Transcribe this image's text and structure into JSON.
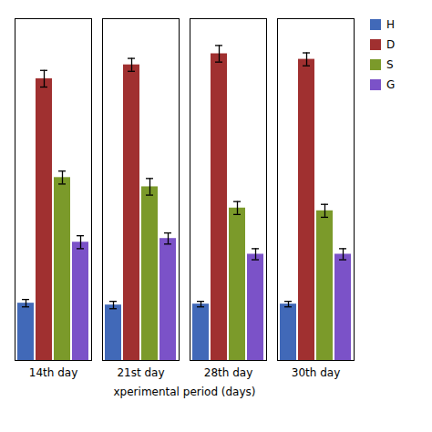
{
  "chart_data": {
    "type": "bar",
    "categories": [
      "14th day",
      "21st day",
      "28th day",
      "30th day"
    ],
    "series": [
      {
        "name": "H",
        "color": "#4169B8",
        "values": [
          62,
          60,
          61,
          61
        ],
        "errors": [
          4,
          4,
          3,
          3
        ]
      },
      {
        "name": "D",
        "color": "#A03030",
        "values": [
          305,
          320,
          332,
          326
        ],
        "errors": [
          9,
          7,
          9,
          7
        ]
      },
      {
        "name": "S",
        "color": "#7B9A2A",
        "values": [
          198,
          188,
          165,
          162
        ],
        "errors": [
          7,
          9,
          7,
          7
        ]
      },
      {
        "name": "G",
        "color": "#7B52C8",
        "values": [
          128,
          132,
          115,
          115
        ],
        "errors": [
          7,
          6,
          6,
          6
        ]
      }
    ],
    "xlabel": "xperimental period (days)",
    "ylim": [
      0,
      370
    ],
    "tick_labels": "x",
    "legend": "right"
  }
}
